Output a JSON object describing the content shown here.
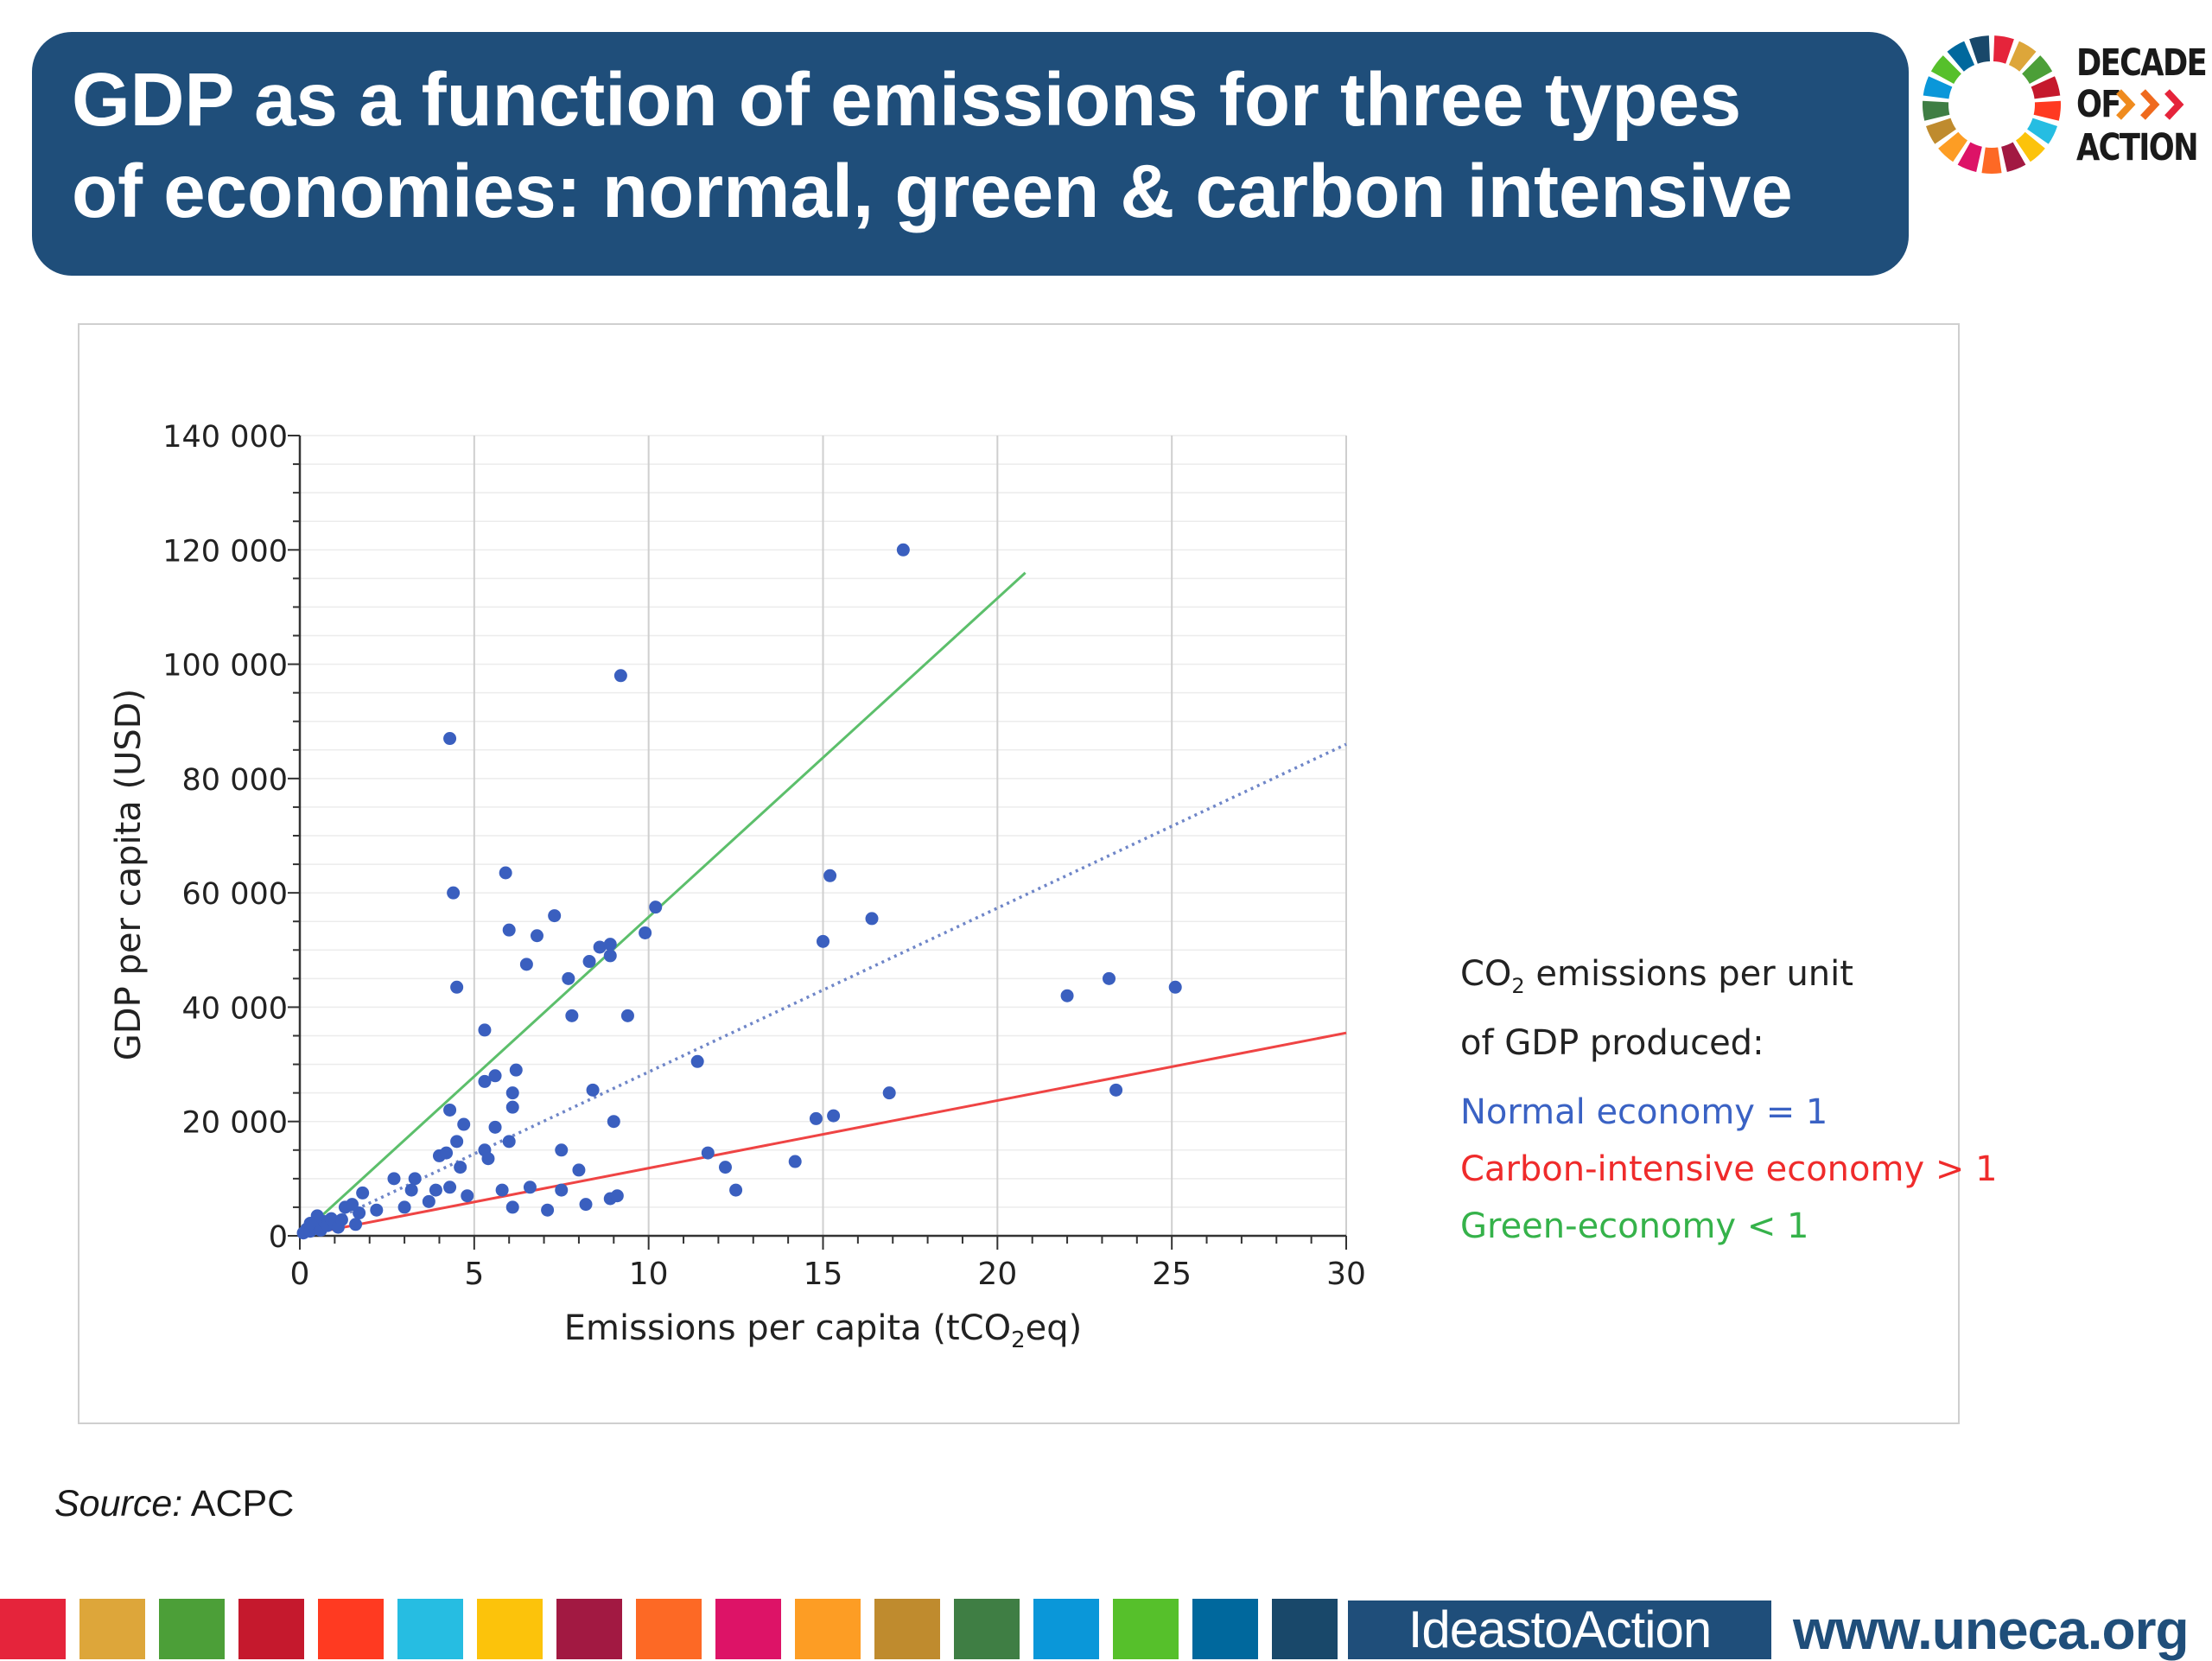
{
  "header": {
    "title_line1": "GDP as a function of emissions for three types",
    "title_line2": "of economies: normal, green & carbon intensive",
    "banner_color": "#1f4e7a"
  },
  "logo": {
    "words": [
      "DECADE",
      "OF",
      "ACTION"
    ],
    "chevron_glyph": "»»"
  },
  "chart_data": {
    "type": "scatter",
    "title": "",
    "xlabel_parts": [
      "Emissions per capita (tCO",
      "2",
      "eq)"
    ],
    "ylabel": "GDP per capita (USD)",
    "xlim": [
      0,
      30
    ],
    "ylim": [
      0,
      140000
    ],
    "x_ticks": [
      0,
      5,
      10,
      15,
      20,
      25,
      30
    ],
    "x_tick_labels": [
      "0",
      "5",
      "10",
      "15",
      "20",
      "25",
      "30"
    ],
    "y_ticks": [
      0,
      20000,
      40000,
      60000,
      80000,
      100000,
      120000,
      140000
    ],
    "y_tick_labels": [
      "0",
      "20 000",
      "40 000",
      "60 000",
      "80 000",
      "100 000",
      "120 000",
      "140 000"
    ],
    "grid": "vertical",
    "point_color": "#3a5fbf",
    "points": [
      [
        0.1,
        500
      ],
      [
        0.2,
        1200
      ],
      [
        0.3,
        800
      ],
      [
        0.4,
        1500
      ],
      [
        0.5,
        2000
      ],
      [
        0.6,
        1000
      ],
      [
        0.7,
        2500
      ],
      [
        0.8,
        1800
      ],
      [
        0.5,
        3500
      ],
      [
        0.3,
        2200
      ],
      [
        0.9,
        3000
      ],
      [
        1.0,
        2200
      ],
      [
        1.1,
        1500
      ],
      [
        1.2,
        2800
      ],
      [
        1.3,
        5000
      ],
      [
        1.5,
        5500
      ],
      [
        1.6,
        2000
      ],
      [
        1.7,
        4000
      ],
      [
        1.8,
        7500
      ],
      [
        2.2,
        4500
      ],
      [
        2.7,
        10000
      ],
      [
        3.0,
        5000
      ],
      [
        3.2,
        8000
      ],
      [
        3.3,
        10000
      ],
      [
        3.7,
        6000
      ],
      [
        3.9,
        8000
      ],
      [
        4.0,
        14000
      ],
      [
        4.2,
        14500
      ],
      [
        4.3,
        22000
      ],
      [
        4.5,
        16500
      ],
      [
        4.3,
        8500
      ],
      [
        4.6,
        12000
      ],
      [
        4.7,
        19500
      ],
      [
        4.8,
        7000
      ],
      [
        4.3,
        87000
      ],
      [
        4.4,
        60000
      ],
      [
        4.5,
        43500
      ],
      [
        5.3,
        36000
      ],
      [
        5.3,
        15000
      ],
      [
        5.3,
        27000
      ],
      [
        5.4,
        13500
      ],
      [
        5.6,
        28000
      ],
      [
        5.6,
        19000
      ],
      [
        5.8,
        8000
      ],
      [
        5.9,
        63500
      ],
      [
        6.0,
        16500
      ],
      [
        6.0,
        53500
      ],
      [
        6.1,
        22500
      ],
      [
        6.1,
        5000
      ],
      [
        6.1,
        25000
      ],
      [
        6.2,
        29000
      ],
      [
        6.5,
        47500
      ],
      [
        6.6,
        8500
      ],
      [
        6.8,
        52500
      ],
      [
        7.1,
        4500
      ],
      [
        7.3,
        56000
      ],
      [
        7.5,
        15000
      ],
      [
        7.5,
        8000
      ],
      [
        7.7,
        45000
      ],
      [
        7.8,
        38500
      ],
      [
        8.0,
        11500
      ],
      [
        8.2,
        5500
      ],
      [
        8.3,
        48000
      ],
      [
        8.4,
        25500
      ],
      [
        8.6,
        50500
      ],
      [
        8.9,
        49000
      ],
      [
        8.9,
        51000
      ],
      [
        8.9,
        6500
      ],
      [
        9.0,
        20000
      ],
      [
        9.1,
        7000
      ],
      [
        9.2,
        98000
      ],
      [
        9.4,
        38500
      ],
      [
        9.9,
        53000
      ],
      [
        10.2,
        57500
      ],
      [
        11.4,
        30500
      ],
      [
        11.7,
        14500
      ],
      [
        12.2,
        12000
      ],
      [
        12.5,
        8000
      ],
      [
        14.2,
        13000
      ],
      [
        14.8,
        20500
      ],
      [
        15.0,
        51500
      ],
      [
        15.2,
        63000
      ],
      [
        15.3,
        21000
      ],
      [
        16.4,
        55500
      ],
      [
        16.9,
        25000
      ],
      [
        17.3,
        120000
      ],
      [
        22.0,
        42000
      ],
      [
        23.2,
        45000
      ],
      [
        23.4,
        25500
      ],
      [
        25.1,
        43500
      ]
    ],
    "lines": [
      {
        "name": "green",
        "color": "#5cbf6b",
        "style": "solid",
        "from": [
          0,
          0
        ],
        "to": [
          20.8,
          116000
        ]
      },
      {
        "name": "normal",
        "color": "#6f86c8",
        "style": "dotted",
        "from": [
          0,
          0
        ],
        "to": [
          30,
          86000
        ]
      },
      {
        "name": "carbon-intensive",
        "color": "#ef4444",
        "style": "solid",
        "from": [
          0,
          0
        ],
        "to": [
          30,
          35500
        ]
      }
    ]
  },
  "legend": {
    "heading_line1_prefix": "CO",
    "heading_line1_sub": "2",
    "heading_line1_suffix": " emissions per unit",
    "heading_line2": "of GDP produced:",
    "items": [
      {
        "label": "Normal economy =  1",
        "color": "#3a62c4"
      },
      {
        "label": "Carbon-intensive economy > 1",
        "color": "#ef2b2b"
      },
      {
        "label": "Green-economy < 1",
        "color": "#35b24a"
      }
    ]
  },
  "source": {
    "label": "Source:",
    "text": " ACPC"
  },
  "footer": {
    "sdg_colors": [
      "#e5243b",
      "#dda63a",
      "#4c9f38",
      "#c5192d",
      "#ff3a21",
      "#26bde2",
      "#fcc30b",
      "#a21942",
      "#fd6925",
      "#dd1367",
      "#fd9d24",
      "#bf8b2e",
      "#3f7e44",
      "#0a97d9",
      "#56c02b",
      "#00689d",
      "#19486a"
    ],
    "ideas_label": "IdeastoAction",
    "url": "www.uneca.org"
  }
}
